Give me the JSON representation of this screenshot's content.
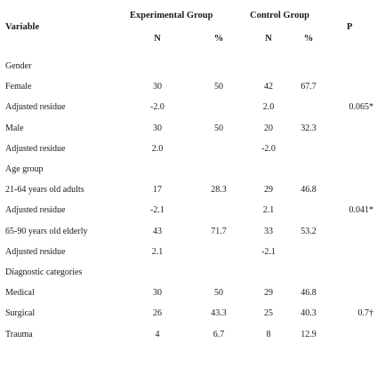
{
  "header": {
    "variable": "Variable",
    "experimental_group": "Experimental Group",
    "control_group": "Control Group",
    "p": "P",
    "n1": "N",
    "pct1": "%",
    "n2": "N",
    "pct2": "%"
  },
  "rows": [
    {
      "label": "Gender",
      "n1": "",
      "p1": "",
      "n2": "",
      "p2": "",
      "p": ""
    },
    {
      "label": "Female",
      "n1": "30",
      "p1": "50",
      "n2": "42",
      "p2": "67.7",
      "p": ""
    },
    {
      "label": "Adjusted residue",
      "n1": "-2.0",
      "p1": "",
      "n2": "2.0",
      "p2": "",
      "p": "0.065*"
    },
    {
      "label": "Male",
      "n1": "30",
      "p1": "50",
      "n2": "20",
      "p2": "32.3",
      "p": ""
    },
    {
      "label": "Adjusted residue",
      "n1": "2.0",
      "p1": "",
      "n2": "-2.0",
      "p2": "",
      "p": ""
    },
    {
      "label": "Age group",
      "n1": "",
      "p1": "",
      "n2": "",
      "p2": "",
      "p": ""
    },
    {
      "label": "21-64 years old adults",
      "n1": "17",
      "p1": "28.3",
      "n2": "29",
      "p2": "46.8",
      "p": ""
    },
    {
      "label": "Adjusted residue",
      "n1": "-2.1",
      "p1": "",
      "n2": "2.1",
      "p2": "",
      "p": "0.041*"
    },
    {
      "label": "65-90 years old elderly",
      "n1": "43",
      "p1": "71.7",
      "n2": "33",
      "p2": "53.2",
      "p": ""
    },
    {
      "label": "Adjusted residue",
      "n1": "2.1",
      "p1": "",
      "n2": "-2.1",
      "p2": "",
      "p": ""
    },
    {
      "label": "Diagnostic categories",
      "n1": "",
      "p1": "",
      "n2": "",
      "p2": "",
      "p": ""
    },
    {
      "label": "Medical",
      "n1": "30",
      "p1": "50",
      "n2": "29",
      "p2": "46.8",
      "p": ""
    },
    {
      "label": "Surgical",
      "n1": "26",
      "p1": "43.3",
      "n2": "25",
      "p2": "40.3",
      "p": "0.7†"
    },
    {
      "label": "Trauma",
      "n1": "4",
      "p1": "6.7",
      "n2": "8",
      "p2": "12.9",
      "p": ""
    }
  ]
}
